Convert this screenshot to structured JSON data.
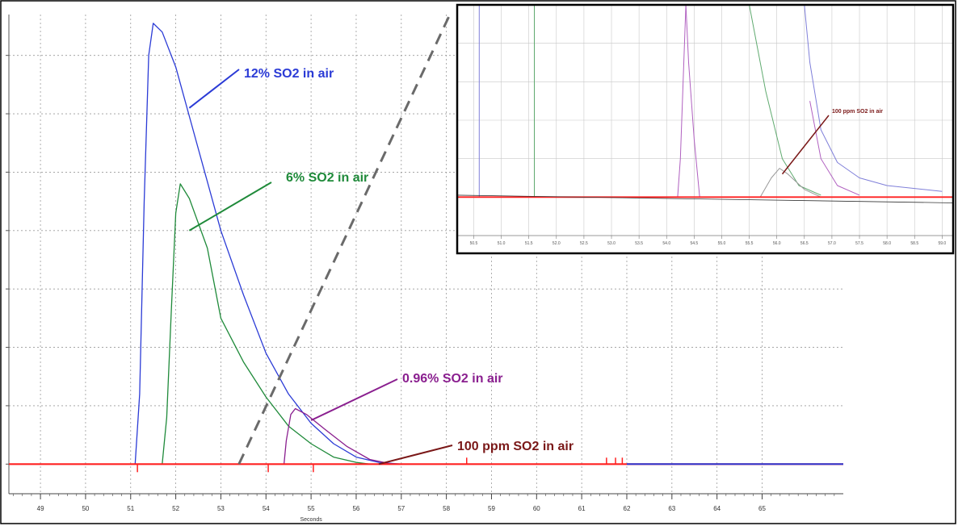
{
  "chart_data": {
    "type": "line",
    "xlabel": "Seconds",
    "ylabel": "",
    "xlim": [
      48.3,
      66.8
    ],
    "ylim": [
      -0.3,
      7.7
    ],
    "x_ticks": [
      "49",
      "50",
      "51",
      "52",
      "53",
      "54",
      "55",
      "56",
      "57",
      "58",
      "59",
      "60",
      "61",
      "62",
      "63",
      "64",
      "65"
    ],
    "grid": true,
    "series": [
      {
        "name": "12% SO2 in air",
        "color": "#2b3bd6",
        "points": [
          [
            48.3,
            0
          ],
          [
            51.1,
            0
          ],
          [
            51.2,
            1.2
          ],
          [
            51.3,
            4.5
          ],
          [
            51.4,
            7.0
          ],
          [
            51.5,
            7.55
          ],
          [
            51.7,
            7.4
          ],
          [
            52.0,
            6.8
          ],
          [
            52.5,
            5.4
          ],
          [
            53.0,
            4.0
          ],
          [
            53.5,
            2.9
          ],
          [
            54.0,
            1.9
          ],
          [
            54.5,
            1.2
          ],
          [
            55.0,
            0.7
          ],
          [
            55.5,
            0.35
          ],
          [
            56.0,
            0.12
          ],
          [
            56.5,
            0.03
          ],
          [
            57.0,
            0
          ],
          [
            66.8,
            0
          ]
        ]
      },
      {
        "name": "6% SO2 in air",
        "color": "#1f8a3a",
        "points": [
          [
            48.3,
            0
          ],
          [
            51.7,
            0
          ],
          [
            51.8,
            0.8
          ],
          [
            51.9,
            2.6
          ],
          [
            52.0,
            4.3
          ],
          [
            52.1,
            4.8
          ],
          [
            52.3,
            4.55
          ],
          [
            52.7,
            3.7
          ],
          [
            53.0,
            2.5
          ],
          [
            53.5,
            1.75
          ],
          [
            54.0,
            1.15
          ],
          [
            54.5,
            0.65
          ],
          [
            55.0,
            0.35
          ],
          [
            55.5,
            0.12
          ],
          [
            56.0,
            0.03
          ],
          [
            56.3,
            0
          ]
        ]
      },
      {
        "name": "0.96% SO2 in air",
        "color": "#8a1f8f",
        "points": [
          [
            54.4,
            0
          ],
          [
            54.45,
            0.4
          ],
          [
            54.55,
            0.85
          ],
          [
            54.65,
            0.95
          ],
          [
            54.9,
            0.85
          ],
          [
            55.3,
            0.6
          ],
          [
            55.8,
            0.3
          ],
          [
            56.3,
            0.08
          ],
          [
            56.8,
            0
          ]
        ]
      },
      {
        "name": "100 ppm SO2 in air",
        "color": "#ff2020",
        "points": [
          [
            48.3,
            0
          ],
          [
            66.8,
            0
          ]
        ]
      }
    ],
    "annotations": [
      {
        "text": "12% SO2 in air",
        "color": "#2b3bd6"
      },
      {
        "text": "6% SO2 in air",
        "color": "#1f8a3a"
      },
      {
        "text": "0.96% SO2 in air",
        "color": "#8a1f8f"
      },
      {
        "text": "100 ppm SO2 in air",
        "color": "#7a1818"
      }
    ],
    "inset": {
      "annotation": "100 ppm SO2 in air",
      "annotation_color": "#7a1818",
      "ylim": [
        -0.2,
        1.0
      ],
      "x_ticks": [
        "50.5",
        "51.0",
        "51.5",
        "52.0",
        "52.5",
        "53.0",
        "53.5",
        "54.0",
        "54.5",
        "55.0",
        "55.5",
        "56.0",
        "56.5",
        "57.0",
        "57.5",
        "58.0",
        "58.5",
        "59.0"
      ],
      "series": [
        {
          "color": "#7f7fd9",
          "points": [
            [
              50.6,
              1.0
            ],
            [
              50.6,
              0
            ]
          ]
        },
        {
          "color": "#5faa6f",
          "points": [
            [
              51.6,
              1.0
            ],
            [
              51.6,
              0
            ]
          ]
        },
        {
          "color": "#b060c0",
          "points": [
            [
              54.2,
              0
            ],
            [
              54.25,
              0.2
            ],
            [
              54.35,
              1.0
            ]
          ]
        },
        {
          "color": "#b060c0",
          "points": [
            [
              54.35,
              1.0
            ],
            [
              54.4,
              0.7
            ],
            [
              54.5,
              0.3
            ],
            [
              54.6,
              0
            ]
          ]
        },
        {
          "color": "#7f7fd9",
          "points": [
            [
              56.5,
              1.0
            ],
            [
              56.6,
              0.7
            ],
            [
              56.8,
              0.35
            ],
            [
              57.1,
              0.18
            ],
            [
              57.5,
              0.1
            ],
            [
              58.0,
              0.06
            ],
            [
              59.0,
              0.03
            ]
          ]
        },
        {
          "color": "#5faa6f",
          "points": [
            [
              55.5,
              1.0
            ],
            [
              55.8,
              0.55
            ],
            [
              56.1,
              0.2
            ],
            [
              56.4,
              0.06
            ],
            [
              56.8,
              0.01
            ]
          ]
        },
        {
          "color": "#b060c0",
          "points": [
            [
              56.6,
              0.5
            ],
            [
              56.8,
              0.2
            ],
            [
              57.1,
              0.06
            ],
            [
              57.5,
              0.01
            ]
          ]
        },
        {
          "color": "#999999",
          "points": [
            [
              55.7,
              0
            ],
            [
              55.9,
              0.1
            ],
            [
              56.05,
              0.15
            ],
            [
              56.2,
              0.12
            ],
            [
              56.5,
              0.04
            ],
            [
              56.8,
              0
            ]
          ]
        },
        {
          "color": "#ff2020",
          "points": [
            [
              50.2,
              0
            ],
            [
              59.2,
              0
            ]
          ]
        }
      ]
    }
  }
}
